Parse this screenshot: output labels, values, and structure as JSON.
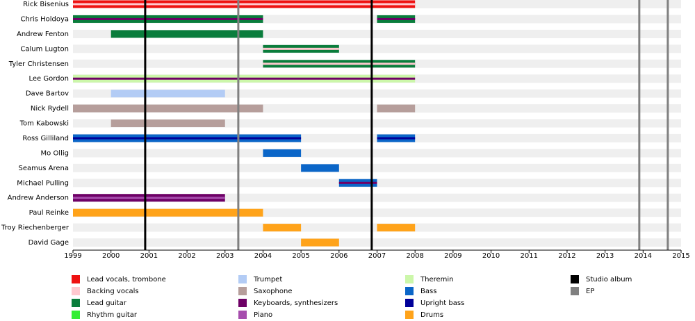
{
  "chart_data": {
    "type": "timeline",
    "xlim": [
      1999,
      2015
    ],
    "xticks": [
      1999,
      2000,
      2001,
      2002,
      2003,
      2004,
      2005,
      2006,
      2007,
      2008,
      2009,
      2010,
      2011,
      2012,
      2013,
      2014,
      2015
    ],
    "legend": [
      {
        "name": "Lead vocals, trombone",
        "color": "#ee1111"
      },
      {
        "name": "Backing vocals",
        "color": "#ffc8cf"
      },
      {
        "name": "Lead guitar",
        "color": "#0a7d3c"
      },
      {
        "name": "Rhythm guitar",
        "color": "#33ee33"
      },
      {
        "name": "Trumpet",
        "color": "#b3ccf5"
      },
      {
        "name": "Saxophone",
        "color": "#b69e9b"
      },
      {
        "name": "Keyboards, synthesizers",
        "color": "#6e0066"
      },
      {
        "name": "Piano",
        "color": "#a64dad"
      },
      {
        "name": "Theremin",
        "color": "#ccf7aa"
      },
      {
        "name": "Bass",
        "color": "#0b66c8"
      },
      {
        "name": "Upright bass",
        "color": "#000099"
      },
      {
        "name": "Drums",
        "color": "#ffa31a"
      },
      {
        "name": "Studio album",
        "color": "#000000"
      },
      {
        "name": "EP",
        "color": "#808080"
      }
    ],
    "events": [
      {
        "x": 2000.9,
        "kind": 12
      },
      {
        "x": 2003.35,
        "kind": 13
      },
      {
        "x": 2006.86,
        "kind": 12
      },
      {
        "x": 2013.9,
        "kind": 13
      },
      {
        "x": 2014.65,
        "kind": 13
      }
    ],
    "members": [
      {
        "name": "Rick Bisenius",
        "periods": [
          {
            "start": 1999,
            "end": 2008,
            "role": 0,
            "stripe": 1
          }
        ]
      },
      {
        "name": "Chris Holdoya",
        "periods": [
          {
            "start": 1999,
            "end": 2004,
            "role": 2,
            "stripe": 6
          },
          {
            "start": 2007,
            "end": 2008,
            "role": 2,
            "stripe": 6
          }
        ]
      },
      {
        "name": "Andrew Fenton",
        "periods": [
          {
            "start": 2000,
            "end": 2004,
            "role": 2
          }
        ]
      },
      {
        "name": "Calum Lugton",
        "periods": [
          {
            "start": 2004,
            "end": 2006,
            "role": 2,
            "stripe": 1
          }
        ]
      },
      {
        "name": "Tyler Christensen",
        "periods": [
          {
            "start": 2004,
            "end": 2008,
            "role": 2,
            "stripe": 1
          }
        ]
      },
      {
        "name": "Lee Gordon",
        "periods": [
          {
            "start": 1999,
            "end": 2008,
            "role": 8,
            "stripe": 6
          }
        ]
      },
      {
        "name": "Dave Bartov",
        "periods": [
          {
            "start": 2000,
            "end": 2003,
            "role": 4
          }
        ]
      },
      {
        "name": "Nick Rydell",
        "periods": [
          {
            "start": 1999,
            "end": 2004,
            "role": 5
          },
          {
            "start": 2007,
            "end": 2008,
            "role": 5
          }
        ]
      },
      {
        "name": "Tom Kabowski",
        "periods": [
          {
            "start": 2000,
            "end": 2003,
            "role": 5
          }
        ]
      },
      {
        "name": "Ross Gilliland",
        "periods": [
          {
            "start": 1999,
            "end": 2005,
            "role": 9,
            "stripe": 10
          },
          {
            "start": 2007,
            "end": 2008,
            "role": 9,
            "stripe": 10
          }
        ]
      },
      {
        "name": "Mo Ollig",
        "periods": [
          {
            "start": 2004,
            "end": 2005,
            "role": 9
          }
        ]
      },
      {
        "name": "Seamus Arena",
        "periods": [
          {
            "start": 2005,
            "end": 2006,
            "role": 9
          }
        ]
      },
      {
        "name": "Michael Pulling",
        "periods": [
          {
            "start": 2006,
            "end": 2007,
            "role": 9,
            "stripe": 6
          }
        ]
      },
      {
        "name": "Andrew Anderson",
        "periods": [
          {
            "start": 1999,
            "end": 2003,
            "role": 6,
            "stripe": 7
          }
        ]
      },
      {
        "name": "Paul Reinke",
        "periods": [
          {
            "start": 1999,
            "end": 2004,
            "role": 11
          }
        ]
      },
      {
        "name": "Troy Riechenberger",
        "periods": [
          {
            "start": 2004,
            "end": 2005,
            "role": 11
          },
          {
            "start": 2007,
            "end": 2008,
            "role": 11
          }
        ]
      },
      {
        "name": "David Gage",
        "periods": [
          {
            "start": 2005,
            "end": 2006,
            "role": 11
          }
        ]
      }
    ]
  }
}
